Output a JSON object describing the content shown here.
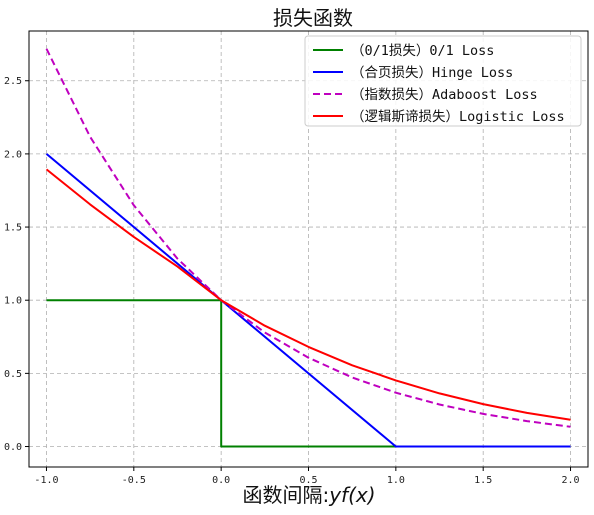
{
  "chart_data": {
    "type": "line",
    "title": "损失函数",
    "xlabel_prefix": "函数间隔:",
    "xlabel_math": "yf(x)",
    "ylabel": "",
    "xlim": [
      -1.1,
      2.1
    ],
    "ylim": [
      -0.14,
      2.84
    ],
    "xticks": [
      -1.0,
      -0.5,
      0.0,
      0.5,
      1.0,
      1.5,
      2.0
    ],
    "xtick_labels": [
      "-1.0",
      "-0.5",
      "0.0",
      "0.5",
      "1.0",
      "1.5",
      "2.0"
    ],
    "yticks": [
      0.0,
      0.5,
      1.0,
      1.5,
      2.0,
      2.5
    ],
    "ytick_labels": [
      "0.0",
      "0.5",
      "1.0",
      "1.5",
      "2.0",
      "2.5"
    ],
    "grid": true,
    "legend_position": "top-right",
    "series": [
      {
        "name": "（0/1损失）0/1 Loss",
        "color": "#008000",
        "dash": "solid",
        "x": [
          -1.0,
          0.0,
          0.0,
          2.0
        ],
        "y": [
          1.0,
          1.0,
          0.0,
          0.0
        ]
      },
      {
        "name": "（合页损失）Hinge Loss",
        "color": "#0000ff",
        "dash": "solid",
        "x": [
          -1.0,
          1.0,
          2.0
        ],
        "y": [
          2.0,
          0.0,
          0.0
        ]
      },
      {
        "name": "（指数损失）Adaboost Loss",
        "color": "#bf00bf",
        "dash": "dashed",
        "x": [
          -1.0,
          -0.75,
          -0.5,
          -0.25,
          0.0,
          0.25,
          0.5,
          0.75,
          1.0,
          1.25,
          1.5,
          1.75,
          2.0
        ],
        "y": [
          2.718,
          2.117,
          1.649,
          1.284,
          1.0,
          0.779,
          0.607,
          0.472,
          0.368,
          0.287,
          0.223,
          0.174,
          0.135
        ]
      },
      {
        "name": "（逻辑斯谛损失）Logistic Loss",
        "color": "#ff0000",
        "dash": "solid",
        "x": [
          -1.0,
          -0.75,
          -0.5,
          -0.25,
          0.0,
          0.25,
          0.5,
          0.75,
          1.0,
          1.25,
          1.5,
          1.75,
          2.0
        ],
        "y": [
          1.894,
          1.655,
          1.433,
          1.23,
          1.0,
          0.826,
          0.681,
          0.555,
          0.452,
          0.363,
          0.29,
          0.23,
          0.183
        ]
      }
    ]
  }
}
